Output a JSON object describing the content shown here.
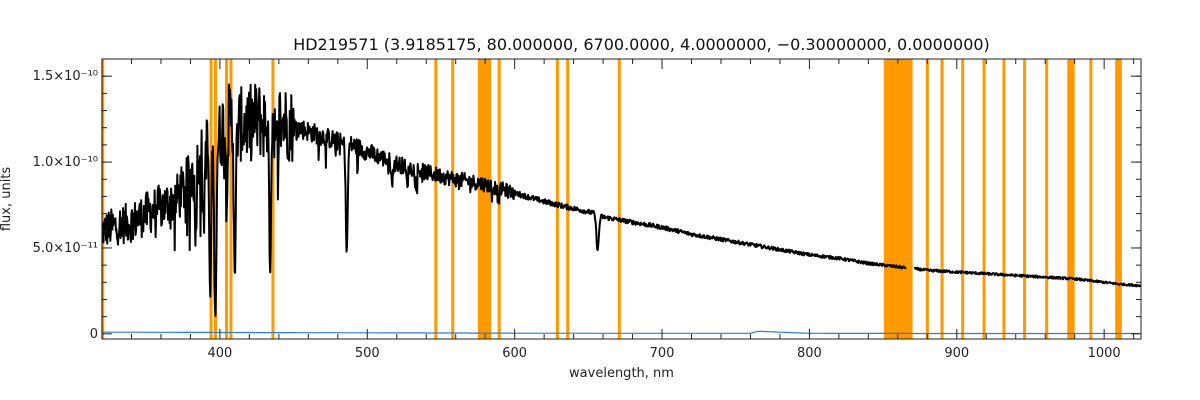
{
  "chart_data": {
    "type": "line",
    "title": "HD219571   (3.9185175, 80.000000, 6700.0000, 4.0000000, −0.30000000, 0.0000000)",
    "xlabel": "wavelength, nm",
    "ylabel": "flux, units",
    "xlim": [
      320,
      1025
    ],
    "ylim": [
      -3e-12,
      1.6e-10
    ],
    "x_ticks": [
      {
        "value": 400,
        "label": "400"
      },
      {
        "value": 500,
        "label": "500"
      },
      {
        "value": 600,
        "label": "600"
      },
      {
        "value": 700,
        "label": "700"
      },
      {
        "value": 800,
        "label": "800"
      },
      {
        "value": 900,
        "label": "900"
      },
      {
        "value": 1000,
        "label": "1000"
      }
    ],
    "y_ticks": [
      {
        "value": 0,
        "label": "0"
      },
      {
        "value": 5e-11,
        "label": "5.0×10⁻¹¹"
      },
      {
        "value": 1e-10,
        "label": "1.0×10⁻¹⁰"
      },
      {
        "value": 1.5e-10,
        "label": "1.5×10⁻¹⁰"
      }
    ],
    "grid": false,
    "series": [
      {
        "color": "#000000",
        "x": [
          320,
          330,
          340,
          350,
          360,
          370,
          380,
          385,
          390,
          395,
          400,
          405,
          410,
          415,
          420,
          425,
          430,
          435,
          440,
          445,
          450,
          460,
          470,
          480,
          485,
          490,
          500,
          520,
          540,
          560,
          575,
          580,
          600,
          620,
          640,
          655,
          660,
          680,
          700,
          720,
          740,
          760,
          780,
          800,
          820,
          840,
          850,
          860,
          880,
          900,
          920,
          940,
          960,
          980,
          1000,
          1010,
          1025
        ],
        "y": [
          6e-11,
          6.3e-11,
          6.5e-11,
          7e-11,
          7.4e-11,
          7.8e-11,
          9e-11,
          1.05e-10,
          1.1e-10,
          1.08e-10,
          1.15e-10,
          1.28e-10,
          1.2e-10,
          1.22e-10,
          1.23e-10,
          1.25e-10,
          1.23e-10,
          1.25e-10,
          1.25e-10,
          1.23e-10,
          1.21e-10,
          1.18e-10,
          1.15e-10,
          1.12e-10,
          1.1e-10,
          1.1e-10,
          1.06e-10,
          9.9e-11,
          9.4e-11,
          9e-11,
          8.8e-11,
          8.7e-11,
          8.2e-11,
          7.7e-11,
          7.3e-11,
          7e-11,
          6.8e-11,
          6.5e-11,
          6.2e-11,
          5.8e-11,
          5.5e-11,
          5.2e-11,
          4.9e-11,
          4.6e-11,
          4.4e-11,
          4.1e-11,
          4e-11,
          3.9e-11,
          3.7e-11,
          3.6e-11,
          3.5e-11,
          3.4e-11,
          3.3e-11,
          3.2e-11,
          3e-11,
          2.9e-11,
          2.8e-11
        ]
      },
      {
        "color": "#2a7fd4",
        "x": [
          320,
          400,
          500,
          600,
          700,
          760,
          765,
          800,
          900,
          1025
        ],
        "y": [
          1e-12,
          8e-13,
          6e-13,
          4e-13,
          3e-13,
          3e-13,
          1.5e-12,
          3e-13,
          2e-13,
          2e-13
        ]
      }
    ],
    "absorption_lines": [
      {
        "x": 393.4,
        "depth": 0.81
      },
      {
        "x": 396.8,
        "depth": 0.81
      },
      {
        "x": 410.2,
        "depth": 0.72
      },
      {
        "x": 434.0,
        "depth": 0.67
      },
      {
        "x": 486.1,
        "depth": 0.57
      },
      {
        "x": 656.3,
        "depth": 0.3
      },
      {
        "x": 589.0,
        "depth": 0.08
      },
      {
        "x": 527.0,
        "depth": 0.1
      },
      {
        "x": 517.0,
        "depth": 0.1
      },
      {
        "x": 438.4,
        "depth": 0.15
      },
      {
        "x": 404.6,
        "depth": 0.3
      },
      {
        "x": 383.5,
        "depth": 0.4
      },
      {
        "x": 388.9,
        "depth": 0.45
      },
      {
        "x": 397.0,
        "depth": 0.5
      }
    ],
    "highlight_lines": [
      {
        "x": 320.5
      },
      {
        "x": 394.0
      },
      {
        "x": 397.0
      },
      {
        "x": 404.5
      },
      {
        "x": 407.5
      },
      {
        "x": 436.0
      },
      {
        "x": 546.5
      },
      {
        "x": 558.0
      },
      {
        "x": 589.5
      },
      {
        "x": 629.0
      },
      {
        "x": 636.0
      },
      {
        "x": 671.0
      },
      {
        "x": 880.0
      },
      {
        "x": 890.0
      },
      {
        "x": 904.0
      },
      {
        "x": 918.5
      },
      {
        "x": 932.0
      },
      {
        "x": 946.0
      },
      {
        "x": 961.0
      },
      {
        "x": 976.0
      },
      {
        "x": 991.0
      },
      {
        "x": 1009.0
      }
    ],
    "highlight_bands": [
      {
        "x0": 575.0,
        "x1": 584.0
      },
      {
        "x0": 850.5,
        "x1": 870.0
      },
      {
        "x0": 976.0,
        "x1": 980.0
      },
      {
        "x0": 1007.5,
        "x1": 1012.0
      }
    ],
    "highlight_color": "#ff9900"
  }
}
